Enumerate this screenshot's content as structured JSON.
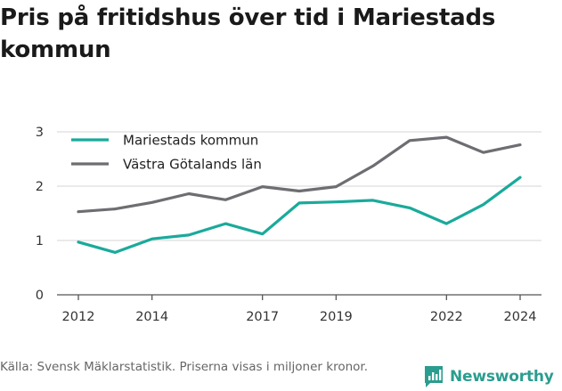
{
  "title": "Pris på fritidshus över tid i Mariestads kommun",
  "source": "Källa: Svensk Mäklarstatistik. Priserna visas i miljoner kronor.",
  "brand": "Newsworthy",
  "colors": {
    "mariestad": "#1aaa9b",
    "vastra": "#6d6d72",
    "grid": "#dddddd",
    "axis": "#555555",
    "brand": "#2a9d8f"
  },
  "chart_data": {
    "type": "line",
    "x": [
      2012,
      2013,
      2014,
      2015,
      2016,
      2017,
      2018,
      2019,
      2020,
      2021,
      2022,
      2023,
      2024
    ],
    "x_tick_labels": [
      "2012",
      "2014",
      "2017",
      "2019",
      "2022",
      "2024"
    ],
    "y_ticks": [
      0,
      1,
      2,
      3
    ],
    "ylim": [
      0,
      3.1
    ],
    "grid": true,
    "legend_position": "top-left",
    "series": [
      {
        "name": "Mariestads kommun",
        "values": [
          0.97,
          0.78,
          1.03,
          1.1,
          1.31,
          1.12,
          1.69,
          1.71,
          1.74,
          1.6,
          1.31,
          1.66,
          2.16
        ]
      },
      {
        "name": "Västra Götalands län",
        "values": [
          1.53,
          1.58,
          1.7,
          1.86,
          1.75,
          1.99,
          1.91,
          1.99,
          2.37,
          2.84,
          2.9,
          2.62,
          2.76
        ]
      }
    ]
  }
}
